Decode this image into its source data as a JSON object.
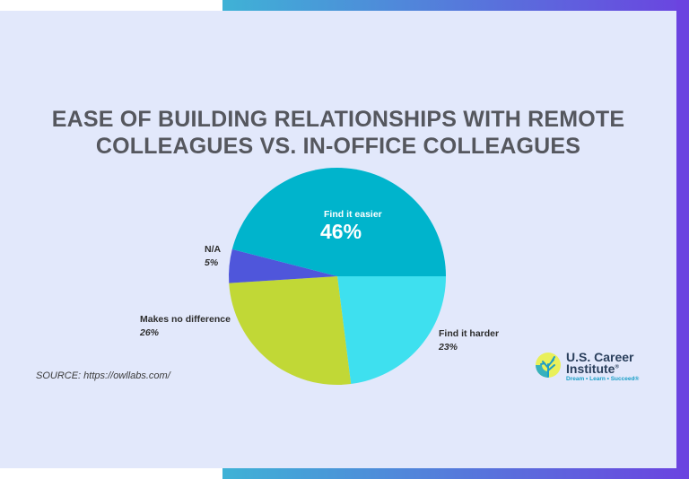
{
  "title_line1": "EASE OF BUILDING RELATIONSHIPS WITH REMOTE",
  "title_line2": "COLLEAGUES VS. IN-OFFICE COLLEAGUES",
  "source": "SOURCE: https://owllabs.com/",
  "logo": {
    "name_line1": "U.S. Career",
    "name_line2": "Institute",
    "registered_mark": "®",
    "tagline": "Dream • Learn • Succeed®"
  },
  "colors": {
    "gradient_start": "#3fb2d6",
    "gradient_end": "#6b43e0",
    "panel": "#e2e8fb",
    "title": "#55575e"
  },
  "chart_data": {
    "type": "pie",
    "title": "EASE OF BUILDING RELATIONSHIPS WITH REMOTE COLLEAGUES VS. IN-OFFICE COLLEAGUES",
    "slices": [
      {
        "label": "Find it easier",
        "value": 46,
        "display": "46%",
        "color": "#00b4cc"
      },
      {
        "label": "Find it harder",
        "value": 23,
        "display": "23%",
        "color": "#3ee0ef"
      },
      {
        "label": "Makes no difference",
        "value": 26,
        "display": "26%",
        "color": "#c1d836"
      },
      {
        "label": "N/A",
        "value": 5,
        "display": "5%",
        "color": "#4f56db"
      }
    ]
  }
}
